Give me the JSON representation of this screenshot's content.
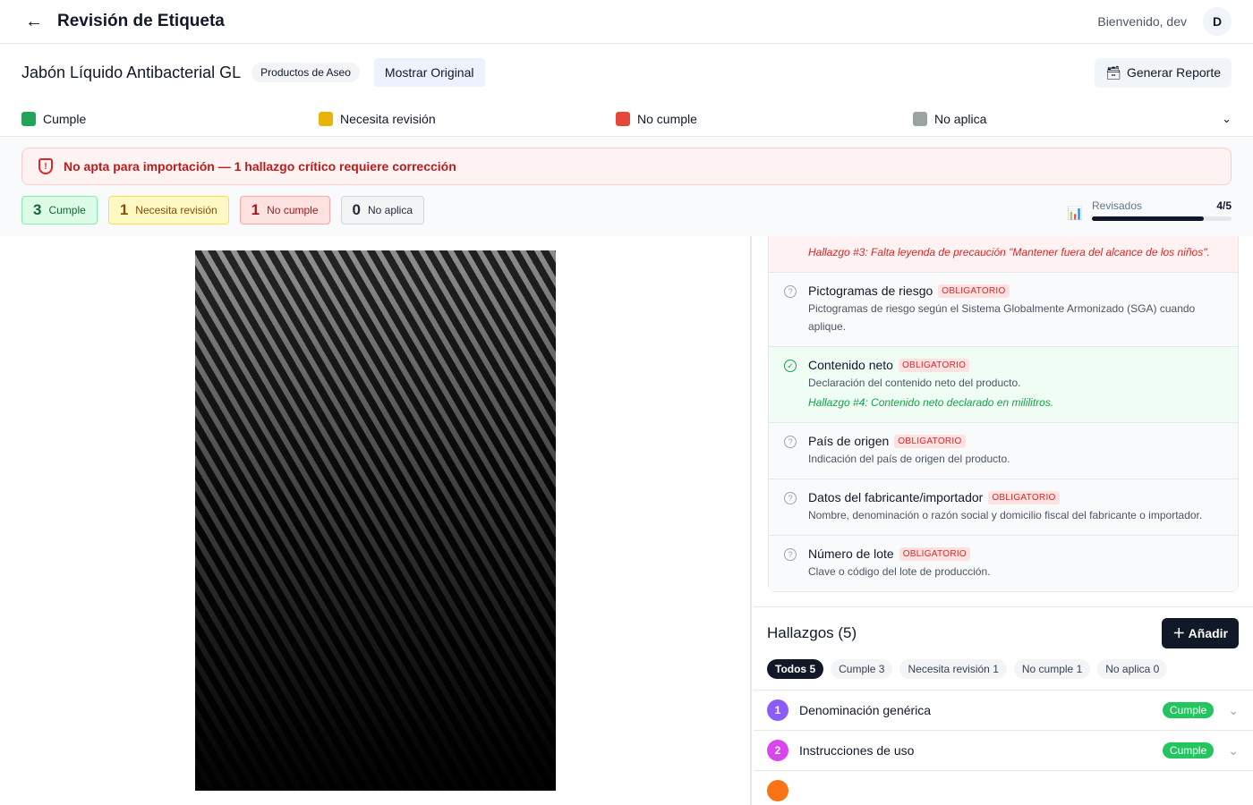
{
  "header": {
    "title": "Revisión de Etiqueta",
    "welcome": "Bienvenido, dev",
    "avatar": "D",
    "back_icon": "arrow-left-icon"
  },
  "product": {
    "name": "Jabón Líquido Antibacterial GL",
    "category": "Productos de Aseo",
    "show_original": "Mostrar Original",
    "report": "Generar Reporte"
  },
  "legend": [
    {
      "label": "Cumple",
      "color": "#22a55a"
    },
    {
      "label": "Necesita revisión",
      "color": "#eab308"
    },
    {
      "label": "No cumple",
      "color": "#e5483b"
    },
    {
      "label": "No aplica",
      "color": "#9ca3a3"
    }
  ],
  "alert": "No apta para importación — 1 hallazgo crítico requiere corrección",
  "counts": [
    {
      "n": "3",
      "label": "Cumple"
    },
    {
      "n": "1",
      "label": "Necesita revisión"
    },
    {
      "n": "1",
      "label": "No cumple"
    },
    {
      "n": "0",
      "label": "No aplica"
    }
  ],
  "progress": {
    "label": "Revisados",
    "value": "4/5",
    "fraction": 0.8
  },
  "requirements": {
    "top_finding": "Hallazgo #3: Falta leyenda de precaución \"Mantener fuera del alcance de los niños\".",
    "badge": "OBLIGATORIO",
    "items": [
      {
        "title": "Pictogramas de riesgo",
        "desc": "Pictogramas de riesgo según el Sistema Globalmente Armonizado (SGA) cuando aplique.",
        "status": "pending"
      },
      {
        "title": "Contenido neto",
        "desc": "Declaración del contenido neto del producto.",
        "finding": "Hallazgo #4: Contenido neto declarado en mililitros.",
        "status": "cumple"
      },
      {
        "title": "País de origen",
        "desc": "Indicación del país de origen del producto.",
        "status": "pending"
      },
      {
        "title": "Datos del fabricante/importador",
        "desc": "Nombre, denominación o razón social y domicilio fiscal del fabricante o importador.",
        "status": "pending"
      },
      {
        "title": "Número de lote",
        "desc": "Clave o código del lote de producción.",
        "status": "pending"
      }
    ]
  },
  "findings": {
    "title": "Hallazgos (5)",
    "add": "Añadir",
    "filters": [
      "Todos 5",
      "Cumple 3",
      "Necesita revisión 1",
      "No cumple 1",
      "No aplica 0"
    ],
    "items": [
      {
        "n": "1",
        "title": "Denominación genérica",
        "status": "Cumple",
        "color": "#8b5cf6"
      },
      {
        "n": "2",
        "title": "Instrucciones de uso",
        "status": "Cumple",
        "color": "#d946ef"
      }
    ]
  }
}
